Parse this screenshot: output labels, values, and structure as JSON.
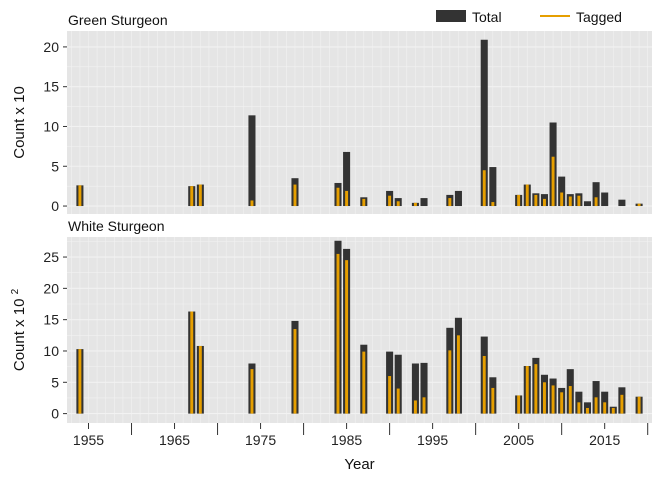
{
  "legend": {
    "total": "Total",
    "tagged": "Tagged"
  },
  "colors": {
    "total": "#333333",
    "tagged": "#E69F00",
    "panel_bg": "#E5E5E5",
    "grid": "#F2F2F2"
  },
  "xlabel": "Year",
  "chart_data": [
    {
      "type": "bar",
      "title": "Green Sturgeon",
      "ylabel": "Count x 10",
      "ylim": [
        -1,
        22
      ],
      "yticks": [
        0,
        5,
        10,
        15,
        20
      ],
      "xlim": [
        1952.5,
        2020.5
      ],
      "xticks": [
        1955,
        1965,
        1975,
        1985,
        1995,
        2005,
        2015
      ],
      "series": [
        {
          "name": "Total",
          "x": [
            1954,
            1967,
            1968,
            1974,
            1979,
            1984,
            1985,
            1987,
            1990,
            1991,
            1993,
            1994,
            1997,
            1998,
            2001,
            2002,
            2005,
            2006,
            2007,
            2008,
            2009,
            2010,
            2011,
            2012,
            2013,
            2014,
            2015,
            2017,
            2019
          ],
          "values": [
            2.6,
            2.5,
            2.7,
            11.4,
            3.5,
            2.9,
            6.8,
            1.1,
            1.9,
            1.0,
            0.4,
            1.0,
            1.4,
            1.9,
            20.9,
            4.9,
            1.4,
            2.7,
            1.6,
            1.5,
            10.5,
            3.7,
            1.5,
            1.6,
            0.6,
            3.0,
            1.7,
            0.8,
            0.3
          ]
        },
        {
          "name": "Tagged",
          "x": [
            1954,
            1967,
            1968,
            1974,
            1979,
            1984,
            1985,
            1987,
            1990,
            1991,
            1993,
            1994,
            1997,
            1998,
            2001,
            2002,
            2005,
            2006,
            2007,
            2008,
            2009,
            2010,
            2011,
            2012,
            2013,
            2014,
            2015,
            2017,
            2019
          ],
          "values": [
            2.6,
            2.5,
            2.7,
            0.7,
            2.7,
            2.3,
            1.9,
            0.9,
            1.3,
            0.6,
            0.4,
            0.0,
            1.0,
            0.0,
            4.5,
            0.5,
            1.4,
            2.7,
            1.4,
            0.9,
            6.2,
            1.7,
            1.2,
            1.3,
            0.0,
            1.1,
            0.0,
            0.0,
            0.3
          ]
        }
      ]
    },
    {
      "type": "bar",
      "title": "White Sturgeon",
      "ylabel": "Count x 10",
      "ylabel_superscript": "2",
      "ylim": [
        -1.5,
        28.2
      ],
      "yticks": [
        0,
        5,
        10,
        15,
        20,
        25
      ],
      "xlim": [
        1952.5,
        2020.5
      ],
      "xticks": [
        1955,
        1965,
        1975,
        1985,
        1995,
        2005,
        2015
      ],
      "series": [
        {
          "name": "Total",
          "x": [
            1954,
            1967,
            1968,
            1974,
            1979,
            1984,
            1985,
            1987,
            1990,
            1991,
            1993,
            1994,
            1997,
            1998,
            2001,
            2002,
            2005,
            2006,
            2007,
            2008,
            2009,
            2010,
            2011,
            2012,
            2013,
            2014,
            2015,
            2016,
            2017,
            2019
          ],
          "values": [
            10.3,
            16.3,
            10.8,
            8.0,
            14.8,
            27.6,
            26.3,
            11.0,
            9.9,
            9.4,
            8.0,
            8.1,
            13.7,
            15.3,
            12.3,
            5.8,
            2.9,
            7.6,
            8.9,
            6.2,
            5.6,
            4.1,
            7.1,
            3.5,
            1.8,
            5.2,
            3.5,
            1.1,
            4.2,
            2.7
          ]
        },
        {
          "name": "Tagged",
          "x": [
            1954,
            1967,
            1968,
            1974,
            1979,
            1984,
            1985,
            1987,
            1990,
            1991,
            1993,
            1994,
            1997,
            1998,
            2001,
            2002,
            2005,
            2006,
            2007,
            2008,
            2009,
            2010,
            2011,
            2012,
            2013,
            2014,
            2015,
            2016,
            2017,
            2019
          ],
          "values": [
            10.3,
            16.3,
            10.8,
            7.1,
            13.5,
            25.5,
            24.5,
            9.9,
            6.0,
            4.0,
            2.1,
            2.6,
            10.1,
            12.5,
            9.2,
            4.1,
            2.9,
            7.6,
            7.9,
            5.0,
            4.5,
            3.4,
            4.4,
            1.8,
            0.9,
            2.6,
            1.8,
            0.9,
            3.0,
            2.7
          ]
        }
      ]
    }
  ]
}
